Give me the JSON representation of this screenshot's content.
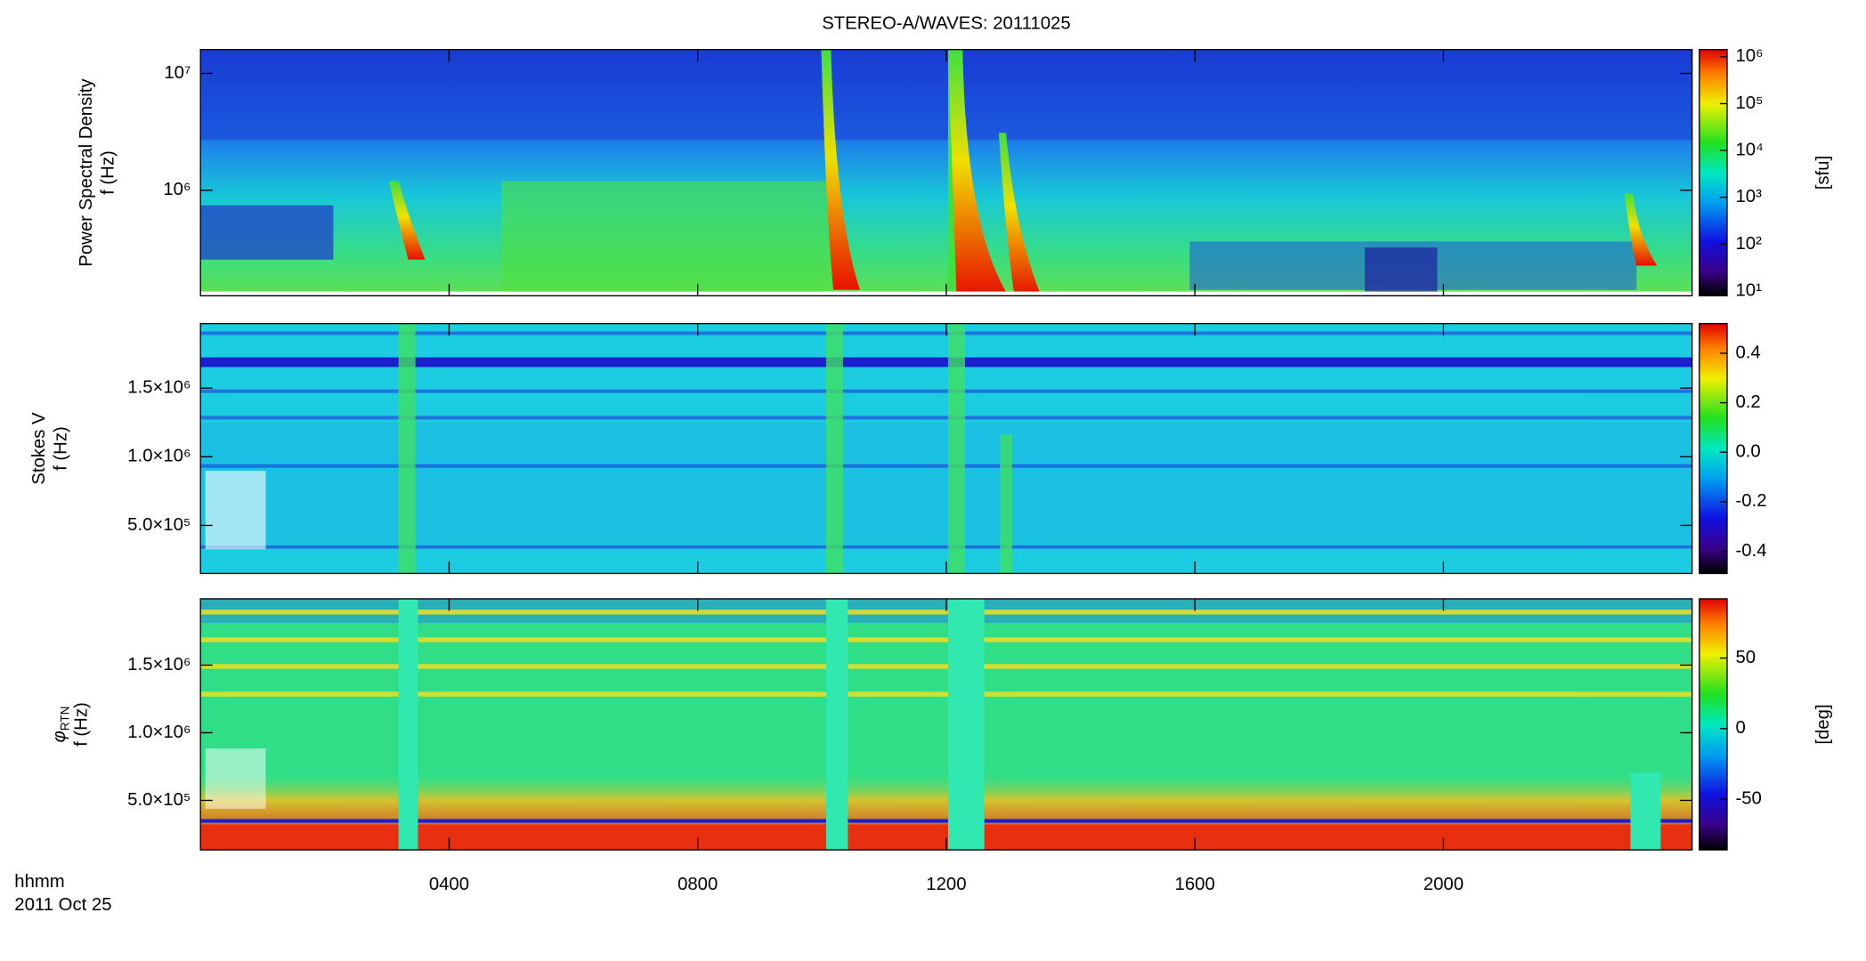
{
  "chart_data": [
    {
      "type": "heatmap",
      "title": "STEREO-A/WAVES: 20111025",
      "ylabel": [
        "Power Spectral Density",
        "f (Hz)"
      ],
      "yscale": "log",
      "ylim": [
        125000,
        16000000
      ],
      "yticks": [
        {
          "value": 10000000,
          "label": "10⁷"
        },
        {
          "value": 1000000,
          "label": "10⁶"
        }
      ],
      "cscale": "log",
      "clim": [
        7.9,
        1430000
      ],
      "cticks": [
        {
          "value": 1000000,
          "label": "10⁶"
        },
        {
          "value": 100000,
          "label": "10⁵"
        },
        {
          "value": 10000,
          "label": "10⁴"
        },
        {
          "value": 1000,
          "label": "10³"
        },
        {
          "value": 100,
          "label": "10²"
        },
        {
          "value": 10,
          "label": "10¹"
        }
      ],
      "clabel": "[sfu]"
    },
    {
      "type": "heatmap",
      "ylabel": [
        "Stokes V",
        "f (Hz)"
      ],
      "yscale": "linear",
      "ylim": [
        150000,
        1970000
      ],
      "yticks": [
        {
          "value": 1500000,
          "label": "1.5×10⁶"
        },
        {
          "value": 1000000,
          "label": "1.0×10⁶"
        },
        {
          "value": 500000,
          "label": "5.0×10⁵"
        }
      ],
      "cscale": "linear",
      "clim": [
        -0.49,
        0.52
      ],
      "cticks": [
        0.4,
        0.2,
        {
          "value": 0,
          "label": "0.0"
        },
        -0.2,
        -0.4
      ]
    },
    {
      "type": "heatmap",
      "ylabel_symbol": "φ",
      "ylabel_subscript": "RTN",
      "ylabel": [
        "f (Hz)"
      ],
      "yscale": "linear",
      "ylim": [
        134000,
        1990000
      ],
      "yticks": [
        {
          "value": 1500000,
          "label": "1.5×10⁶"
        },
        {
          "value": 1000000,
          "label": "1.0×10⁶"
        },
        {
          "value": 500000,
          "label": "5.0×10⁵"
        }
      ],
      "cscale": "linear",
      "clim": [
        -86,
        92
      ],
      "cticks": [
        50,
        0,
        -50
      ],
      "clabel": "[deg]",
      "xlim": [
        0,
        24
      ],
      "xticks": [
        {
          "value": 4,
          "label": "0400"
        },
        {
          "value": 8,
          "label": "0800"
        },
        {
          "value": 12,
          "label": "1200"
        },
        {
          "value": 16,
          "label": "1600"
        },
        {
          "value": 20,
          "label": "2000"
        }
      ],
      "xlabel": "hhmm",
      "date": "2011 Oct 25"
    }
  ]
}
